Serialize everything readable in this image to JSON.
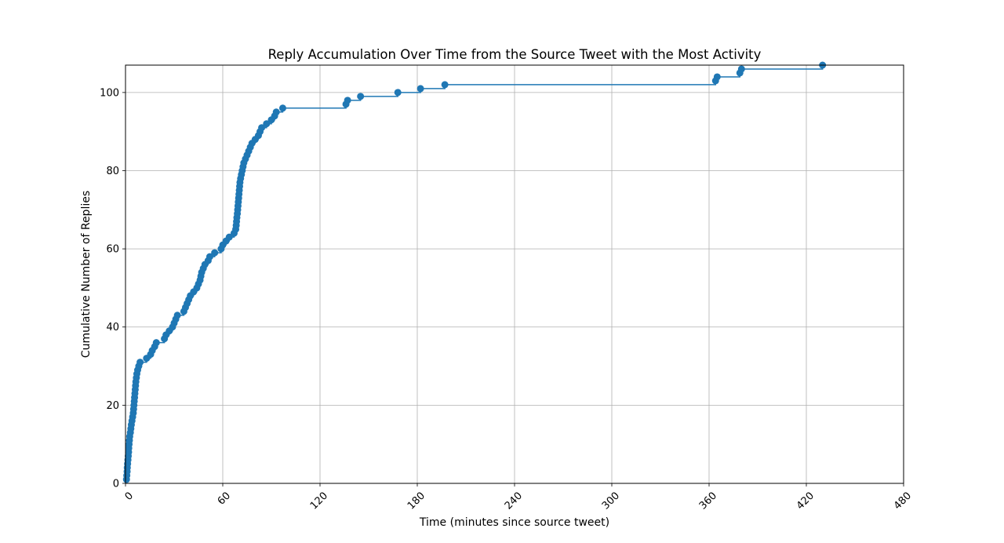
{
  "chart_data": {
    "type": "line",
    "title": "Reply Accumulation Over Time from the Source Tweet with the Most Activity",
    "xlabel": "Time (minutes since source tweet)",
    "ylabel": "Cumulative Number of Replies",
    "xlim": [
      0,
      480
    ],
    "ylim": [
      0,
      107
    ],
    "x_ticks": [
      0,
      60,
      120,
      180,
      240,
      300,
      360,
      420,
      480
    ],
    "y_ticks": [
      0,
      20,
      40,
      60,
      80,
      100
    ],
    "x_tick_rotation_deg": 45,
    "grid": true,
    "step": "post",
    "marker": "circle",
    "color": "#1f77b4",
    "x": [
      0.6,
      0.8,
      1.0,
      1.1,
      1.3,
      1.5,
      1.7,
      1.9,
      2.0,
      2.2,
      2.4,
      2.6,
      3.0,
      3.3,
      3.6,
      4.0,
      4.4,
      4.8,
      5.0,
      5.2,
      5.4,
      5.6,
      5.8,
      6.0,
      6.2,
      6.4,
      6.7,
      7.0,
      7.5,
      8.2,
      9.0,
      13.0,
      15.5,
      16.5,
      18.0,
      19.0,
      24.0,
      25.0,
      27.0,
      29.0,
      30.0,
      31.0,
      32.0,
      36.0,
      37.0,
      38.0,
      39.0,
      40.0,
      42.0,
      44.0,
      45.0,
      46.0,
      46.5,
      47.0,
      48.0,
      49.0,
      51.0,
      52.0,
      55.0,
      59.0,
      60.0,
      62.0,
      64.0,
      67.0,
      68.0,
      68.3,
      68.5,
      68.7,
      69.0,
      69.2,
      69.4,
      69.6,
      69.8,
      70.0,
      70.2,
      70.4,
      70.6,
      71.0,
      71.5,
      72.0,
      72.5,
      73.0,
      74.0,
      75.0,
      76.0,
      77.0,
      78.0,
      80.0,
      82.0,
      83.0,
      84.0,
      87.0,
      90.0,
      92.0,
      93.0,
      97.0,
      136.0,
      137.0,
      145.0,
      168.0,
      182.0,
      197.0,
      364.0,
      365.0,
      379.0,
      380.0,
      430.0
    ],
    "values": [
      1,
      2,
      3,
      4,
      5,
      6,
      7,
      8,
      9,
      10,
      11,
      12,
      13,
      14,
      15,
      16,
      17,
      18,
      19,
      20,
      21,
      22,
      23,
      24,
      25,
      26,
      27,
      28,
      29,
      30,
      31,
      32,
      33,
      34,
      35,
      36,
      37,
      38,
      39,
      40,
      41,
      42,
      43,
      44,
      45,
      46,
      47,
      48,
      49,
      50,
      51,
      52,
      53,
      54,
      55,
      56,
      57,
      58,
      59,
      60,
      61,
      62,
      63,
      64,
      65,
      66,
      67,
      68,
      69,
      70,
      71,
      72,
      73,
      74,
      75,
      76,
      77,
      78,
      79,
      80,
      81,
      82,
      83,
      84,
      85,
      86,
      87,
      88,
      89,
      90,
      91,
      92,
      93,
      94,
      95,
      96,
      97,
      98,
      99,
      100,
      101,
      102,
      103,
      104,
      105,
      106,
      107
    ]
  }
}
